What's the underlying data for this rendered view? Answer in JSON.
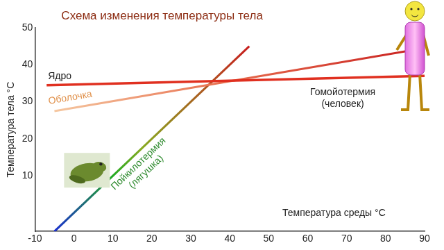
{
  "chart_data": {
    "type": "line",
    "title": "Схема изменения температуры тела",
    "x_label": "Температура среды °С",
    "y_label": "Температура тела °С",
    "xlim": [
      -10,
      90
    ],
    "xticks": [
      -10,
      0,
      10,
      20,
      30,
      40,
      50,
      60,
      70,
      80,
      90
    ],
    "ylim": [
      -5,
      50
    ],
    "yticks": [
      10,
      20,
      30,
      40,
      50
    ],
    "grid": false,
    "series": [
      {
        "name": "Ядро",
        "color": "#e03020",
        "x": [
          -7,
          90
        ],
        "values": [
          34.5,
          37
        ]
      },
      {
        "name": "Оболочка",
        "color": "#c81e1e",
        "x": [
          -5,
          90
        ],
        "values": [
          27.5,
          44.5
        ]
      },
      {
        "name": "Пойкилотермия (лягушка)",
        "color": "#c81e1e",
        "x": [
          -5,
          45
        ],
        "values": [
          -5,
          45
        ]
      }
    ],
    "annotations": [
      "Гомойотермия (человек)"
    ]
  }
}
